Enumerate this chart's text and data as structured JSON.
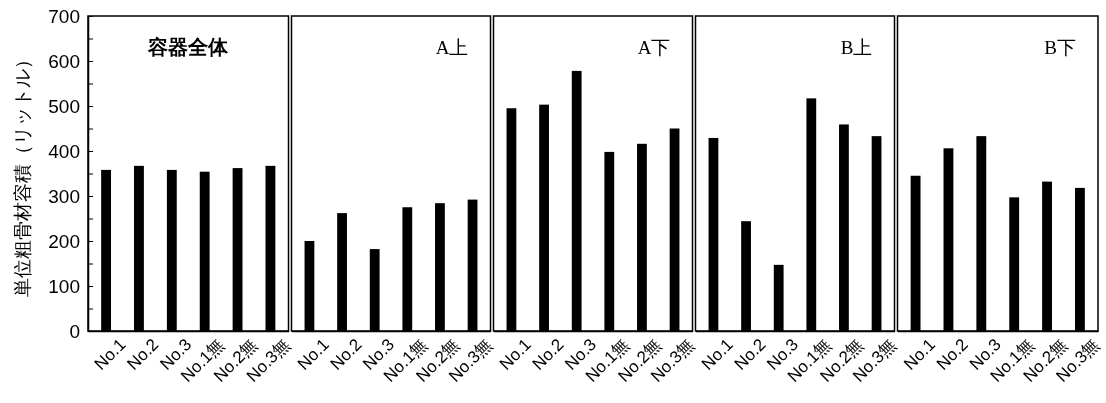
{
  "chart_data": [
    {
      "type": "bar",
      "title": "容器全体",
      "ylabel": "単位粗骨材容積（リットル）",
      "categories": [
        "No.1",
        "No.2",
        "No.3",
        "No.1無",
        "No.2無",
        "No.3無"
      ],
      "values": [
        358,
        367,
        358,
        354,
        362,
        367
      ],
      "color": "#000000",
      "ylim": [
        0,
        700
      ],
      "yticks": [
        0,
        {
          "value": 50,
          "label": null
        },
        100,
        {
          "value": 150,
          "label": null
        },
        200,
        {
          "value": 250,
          "label": null
        },
        300,
        {
          "value": 350,
          "label": null
        },
        400,
        {
          "value": 450,
          "label": null
        },
        500,
        {
          "value": 550,
          "label": null
        },
        600,
        {
          "value": 650,
          "label": null
        },
        700
      ]
    },
    {
      "type": "bar",
      "title": "A上",
      "categories": [
        "No.1",
        "No.2",
        "No.3",
        "No.1無",
        "No.2無",
        "No.3無"
      ],
      "values": [
        200,
        262,
        182,
        275,
        284,
        292
      ],
      "color": "#000000",
      "ylim": [
        0,
        700
      ],
      "tick_labels": "x"
    },
    {
      "type": "bar",
      "title": "A下",
      "categories": [
        "No.1",
        "No.2",
        "No.3",
        "No.1無",
        "No.2無",
        "No.3無"
      ],
      "values": [
        495,
        503,
        578,
        398,
        416,
        450
      ],
      "color": "#000000",
      "ylim": [
        0,
        700
      ],
      "tick_labels": "x"
    },
    {
      "type": "bar",
      "title": "B上",
      "categories": [
        "No.1",
        "No.2",
        "No.3",
        "No.1無",
        "No.2無",
        "No.3無"
      ],
      "values": [
        429,
        244,
        147,
        517,
        459,
        433
      ],
      "color": "#000000",
      "ylim": [
        0,
        700
      ],
      "tick_labels": "x"
    },
    {
      "type": "bar",
      "title": "B下",
      "categories": [
        "No.1",
        "No.2",
        "No.3",
        "No.1無",
        "No.2無",
        "No.3無"
      ],
      "values": [
        345,
        406,
        433,
        297,
        332,
        318
      ],
      "color": "#000000",
      "ylim": [
        0,
        700
      ],
      "tick_labels": "x"
    }
  ]
}
